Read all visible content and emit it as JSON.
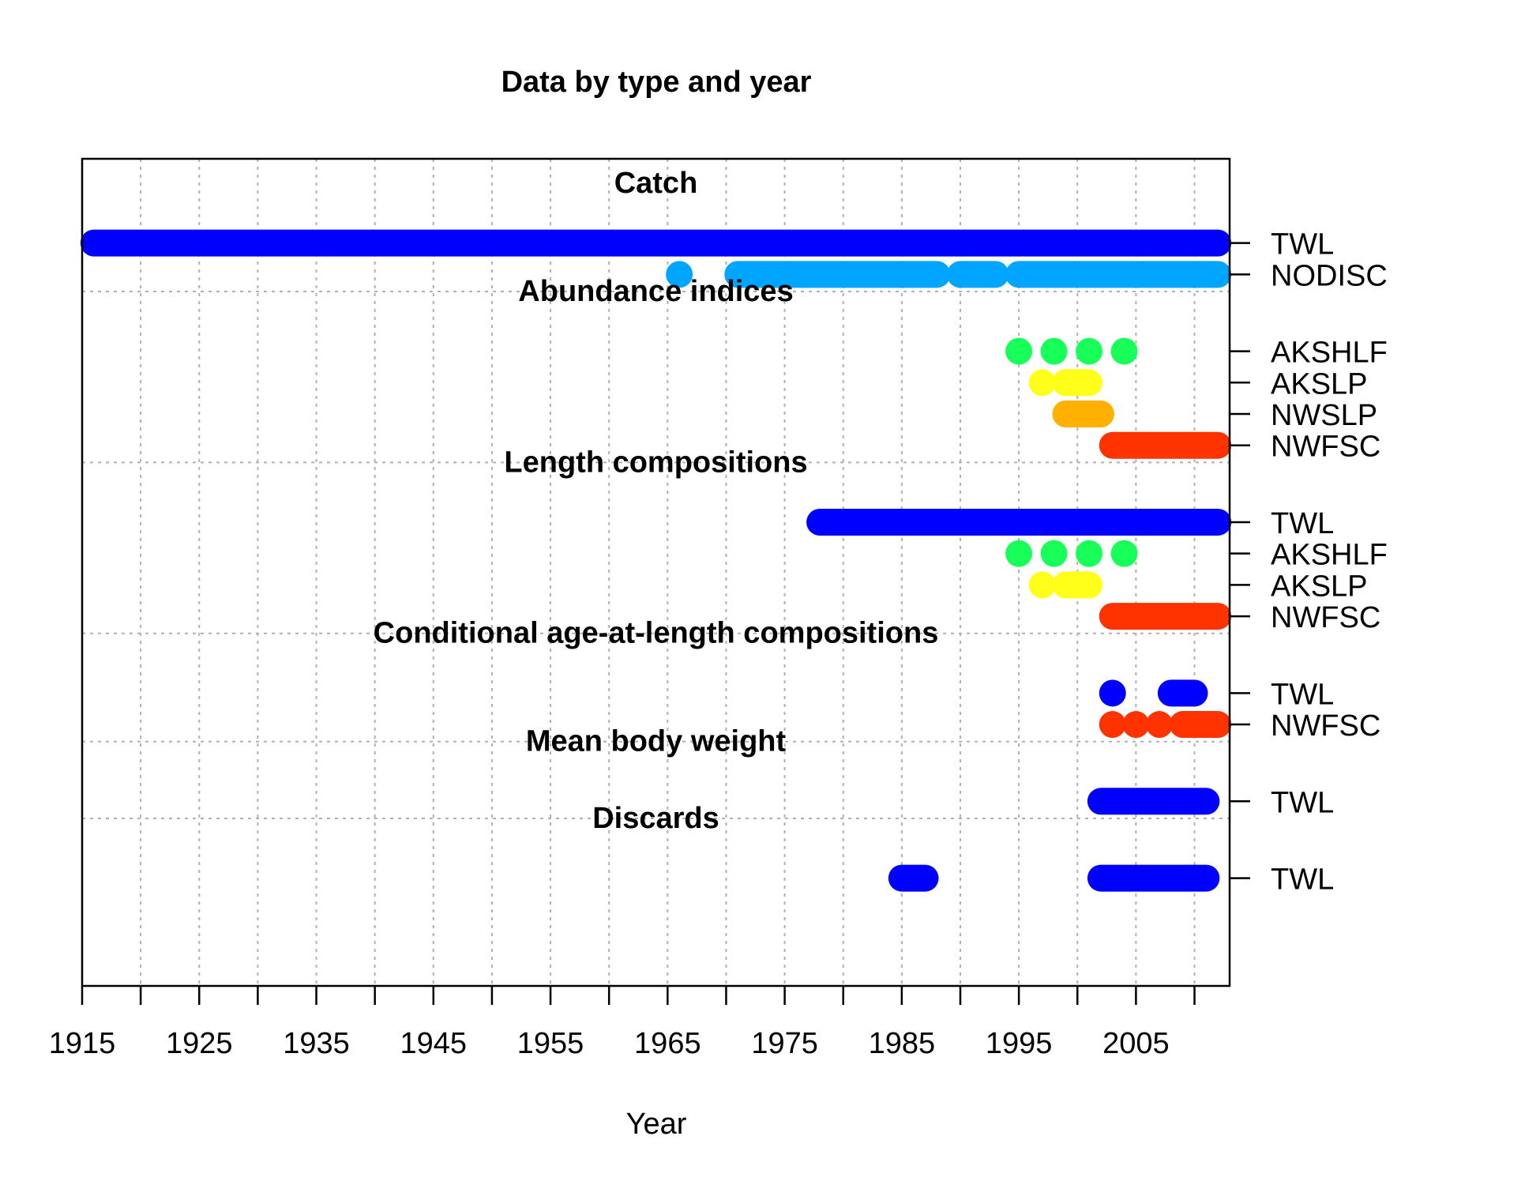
{
  "chart_data": {
    "type": "timeline",
    "title": "Data by type and year",
    "xlabel": "Year",
    "xlim": [
      1915,
      2013
    ],
    "xticks": [
      1915,
      1920,
      1925,
      1930,
      1935,
      1940,
      1945,
      1950,
      1955,
      1960,
      1965,
      1970,
      1975,
      1980,
      1985,
      1990,
      1995,
      2000,
      2005,
      2010
    ],
    "xtick_labels": [
      "1915",
      "",
      "1925",
      "",
      "1935",
      "",
      "1945",
      "",
      "1955",
      "",
      "1965",
      "",
      "1975",
      "",
      "1985",
      "",
      "1995",
      "",
      "2005",
      ""
    ],
    "grid": true,
    "colors": {
      "TWL": "#0000FF",
      "NODISC": "#00A5FF",
      "AKSHLF": "#19FF5A",
      "AKSLP": "#FFFF19",
      "NWSLP": "#FFB000",
      "NWFSC": "#FF3300"
    },
    "sections": [
      {
        "label": "Catch",
        "rows": [
          {
            "fleet": "TWL",
            "segments": [
              [
                1916,
                2012
              ]
            ]
          },
          {
            "fleet": "NODISC",
            "segments": [
              [
                1966,
                1966
              ],
              [
                1971,
                1988
              ],
              [
                1990,
                1993
              ],
              [
                1995,
                2012
              ]
            ]
          }
        ]
      },
      {
        "label": "Abundance indices",
        "rows": [
          {
            "fleet": "AKSHLF",
            "segments": [
              [
                1995,
                1995
              ],
              [
                1998,
                1998
              ],
              [
                2001,
                2001
              ],
              [
                2004,
                2004
              ]
            ]
          },
          {
            "fleet": "AKSLP",
            "segments": [
              [
                1997,
                1997
              ],
              [
                1999,
                2001
              ]
            ]
          },
          {
            "fleet": "NWSLP",
            "segments": [
              [
                1999,
                2002
              ]
            ]
          },
          {
            "fleet": "NWFSC",
            "segments": [
              [
                2003,
                2012
              ]
            ]
          }
        ]
      },
      {
        "label": "Length compositions",
        "rows": [
          {
            "fleet": "TWL",
            "segments": [
              [
                1978,
                2012
              ]
            ]
          },
          {
            "fleet": "AKSHLF",
            "segments": [
              [
                1995,
                1995
              ],
              [
                1998,
                1998
              ],
              [
                2001,
                2001
              ],
              [
                2004,
                2004
              ]
            ]
          },
          {
            "fleet": "AKSLP",
            "segments": [
              [
                1997,
                1997
              ],
              [
                1999,
                2001
              ]
            ]
          },
          {
            "fleet": "NWFSC",
            "segments": [
              [
                2003,
                2012
              ]
            ]
          }
        ]
      },
      {
        "label": "Conditional age-at-length compositions",
        "rows": [
          {
            "fleet": "TWL",
            "segments": [
              [
                2003,
                2003
              ],
              [
                2008,
                2010
              ]
            ]
          },
          {
            "fleet": "NWFSC",
            "segments": [
              [
                2003,
                2003
              ],
              [
                2005,
                2005
              ],
              [
                2007,
                2007
              ],
              [
                2009,
                2012
              ]
            ]
          }
        ]
      },
      {
        "label": "Mean body weight",
        "rows": [
          {
            "fleet": "TWL",
            "segments": [
              [
                2002,
                2011
              ]
            ]
          }
        ]
      },
      {
        "label": "Discards",
        "rows": [
          {
            "fleet": "TWL",
            "segments": [
              [
                1985,
                1987
              ],
              [
                2002,
                2011
              ]
            ]
          }
        ]
      }
    ]
  }
}
